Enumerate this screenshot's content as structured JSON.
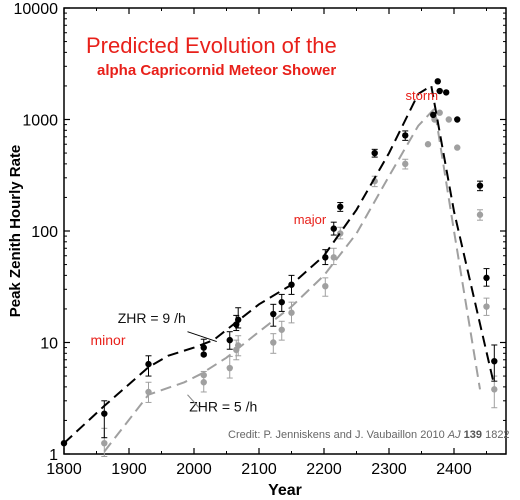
{
  "chart_data": {
    "type": "scatter",
    "title": "Predicted Evolution of the",
    "subtitle": "alpha Capricornid Meteor Shower",
    "xlabel": "Year",
    "ylabel": "Peak Zenith Hourly Rate",
    "xlim": [
      1800,
      2480
    ],
    "ylim": [
      1,
      10000
    ],
    "yscale": "log",
    "xticks": [
      "1800",
      "1900",
      "2000",
      "2100",
      "2200",
      "2300",
      "2400"
    ],
    "yticks": [
      "1",
      "10",
      "100",
      "1000",
      "10000"
    ],
    "grid": false,
    "series": [
      {
        "name": "ZHR = 9 /h",
        "color": "#000000",
        "points": [
          [
            1800,
            1.25
          ],
          [
            1862,
            2.3
          ],
          [
            1930,
            6.4
          ],
          [
            2015,
            9.0
          ],
          [
            2015,
            7.8
          ],
          [
            2055,
            10.5
          ],
          [
            2065,
            14.5
          ],
          [
            2068,
            16.0
          ],
          [
            2122,
            18
          ],
          [
            2135,
            23
          ],
          [
            2150,
            33
          ],
          [
            2202,
            58
          ],
          [
            2215,
            105
          ],
          [
            2225,
            165
          ],
          [
            2278,
            500
          ],
          [
            2325,
            720
          ],
          [
            2368,
            1100
          ],
          [
            2375,
            2200
          ],
          [
            2378,
            1800
          ],
          [
            2388,
            1750
          ],
          [
            2405,
            1000
          ],
          [
            2440,
            255
          ],
          [
            2450,
            38
          ],
          [
            2462,
            6.8
          ]
        ],
        "errors": [
          [
            1862,
            1.4,
            3.0
          ],
          [
            1930,
            5.0,
            7.6
          ],
          [
            2015,
            7.6,
            10.7
          ],
          [
            2055,
            8.7,
            12.5
          ],
          [
            2065,
            12.8,
            17.5
          ],
          [
            2068,
            13.5,
            20.5
          ],
          [
            2122,
            14,
            22
          ],
          [
            2135,
            19,
            27
          ],
          [
            2150,
            27,
            40
          ],
          [
            2202,
            50,
            68
          ],
          [
            2215,
            92,
            120
          ],
          [
            2225,
            150,
            180
          ],
          [
            2278,
            460,
            540
          ],
          [
            2325,
            650,
            790
          ],
          [
            2440,
            230,
            280
          ],
          [
            2450,
            32,
            46
          ],
          [
            2462,
            4.5,
            9.5
          ]
        ],
        "model": [
          [
            1800,
            1.25
          ],
          [
            1862,
            2.7
          ],
          [
            1930,
            6.0
          ],
          [
            1960,
            7.6
          ],
          [
            2000,
            9.0
          ],
          [
            2030,
            10.5
          ],
          [
            2100,
            22
          ],
          [
            2150,
            33
          ],
          [
            2200,
            60
          ],
          [
            2250,
            155
          ],
          [
            2300,
            500
          ],
          [
            2345,
            1700
          ],
          [
            2365,
            2000
          ],
          [
            2400,
            150
          ],
          [
            2460,
            4.6
          ]
        ]
      },
      {
        "name": "ZHR = 5 /h",
        "color": "#a0a0a0",
        "points": [
          [
            1862,
            1.25
          ],
          [
            1930,
            3.6
          ],
          [
            2015,
            4.4
          ],
          [
            2015,
            5.1
          ],
          [
            2055,
            5.9
          ],
          [
            2065,
            8.6
          ],
          [
            2068,
            9.4
          ],
          [
            2122,
            10
          ],
          [
            2135,
            13
          ],
          [
            2150,
            18.5
          ],
          [
            2202,
            32
          ],
          [
            2215,
            58
          ],
          [
            2225,
            95
          ],
          [
            2278,
            280
          ],
          [
            2325,
            400
          ],
          [
            2360,
            600
          ],
          [
            2370,
            1000
          ],
          [
            2378,
            1150
          ],
          [
            2392,
            1000
          ],
          [
            2405,
            560
          ],
          [
            2440,
            140
          ],
          [
            2450,
            21
          ],
          [
            2462,
            3.8
          ]
        ],
        "errors": [
          [
            1862,
            0.95,
            1.7
          ],
          [
            1930,
            2.9,
            4.4
          ],
          [
            2015,
            3.6,
            5.5
          ],
          [
            2055,
            4.8,
            7.5
          ],
          [
            2065,
            7.0,
            10.5
          ],
          [
            2068,
            7.6,
            11.5
          ],
          [
            2122,
            8,
            12
          ],
          [
            2135,
            10.5,
            15.5
          ],
          [
            2150,
            15,
            23
          ],
          [
            2202,
            26,
            38
          ],
          [
            2215,
            50,
            70
          ],
          [
            2225,
            85,
            108
          ],
          [
            2278,
            250,
            310
          ],
          [
            2325,
            360,
            440
          ],
          [
            2440,
            125,
            155
          ],
          [
            2450,
            17.5,
            25
          ],
          [
            2462,
            2.6,
            5.0
          ]
        ],
        "model": [
          [
            1862,
            1.05
          ],
          [
            1930,
            3.4
          ],
          [
            1985,
            4.4
          ],
          [
            2010,
            5.2
          ],
          [
            2050,
            7.3
          ],
          [
            2100,
            12.5
          ],
          [
            2150,
            21
          ],
          [
            2200,
            40
          ],
          [
            2250,
            95
          ],
          [
            2300,
            310
          ],
          [
            2345,
            880
          ],
          [
            2370,
            1250
          ],
          [
            2400,
            100
          ],
          [
            2440,
            3.8
          ]
        ]
      }
    ],
    "annotations": [
      {
        "text": "storm",
        "x": 2372,
        "y": 1500
      },
      {
        "text": "major",
        "x": 2203,
        "y": 115
      },
      {
        "text": "minor",
        "x": 1880,
        "y": 9.5
      },
      {
        "text": "ZHR = 9 /h",
        "x": 1935,
        "y": 15
      },
      {
        "text": "ZHR = 5 /h",
        "x": 2045,
        "y": 2.4
      }
    ],
    "credit": {
      "prefix": "Credit: P. Jenniskens and J. Vaubaillon 2010 ",
      "journal": "AJ",
      "volume": "139",
      "page": "1822"
    }
  }
}
